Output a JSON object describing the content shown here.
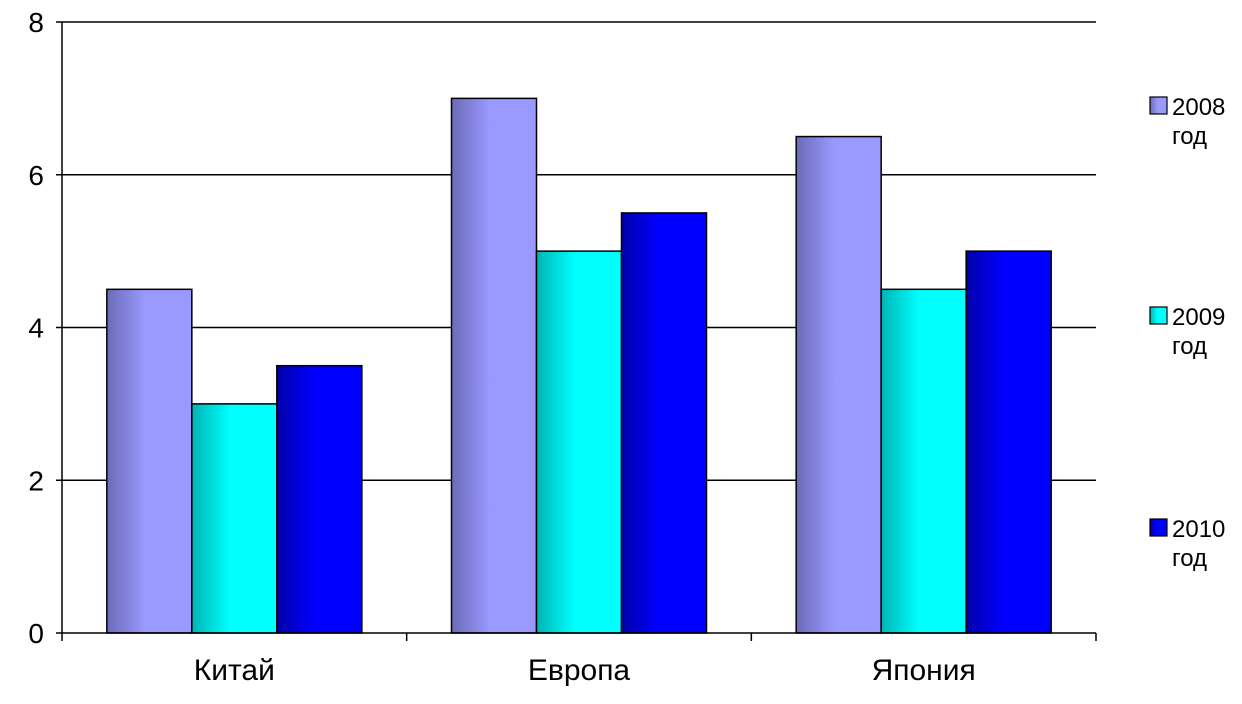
{
  "chart_data": {
    "type": "bar",
    "categories": [
      "Китай",
      "Европа",
      "Япония"
    ],
    "series": [
      {
        "name": "2008 год",
        "name_lines": [
          "2008",
          "год"
        ],
        "values": [
          4.5,
          7.0,
          6.5
        ],
        "color": "#9999ff",
        "shade": "#6b6bb8"
      },
      {
        "name": "2009 год",
        "name_lines": [
          "2009",
          "год"
        ],
        "values": [
          3.0,
          5.0,
          4.5
        ],
        "color": "#00ffff",
        "shade": "#00b3b3"
      },
      {
        "name": "2010 год",
        "name_lines": [
          "2010",
          "год"
        ],
        "values": [
          3.5,
          5.5,
          5.0
        ],
        "color": "#0000ff",
        "shade": "#0000a8"
      }
    ],
    "ylim": [
      0,
      8
    ],
    "yticks": [
      0,
      2,
      4,
      6,
      8
    ],
    "title": "",
    "xlabel": "",
    "ylabel": "",
    "grid": "horizontal",
    "legend_position": "right"
  }
}
